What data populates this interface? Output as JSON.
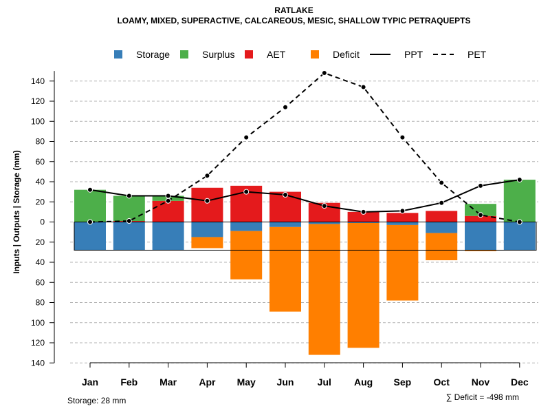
{
  "chart_data": {
    "type": "bar",
    "title": "RATLAKE",
    "subtitle": "LOAMY, MIXED, SUPERACTIVE, CALCAREOUS, MESIC, SHALLOW TYPIC PETRAQUEPTS",
    "ylabel": "Inputs | Outputs | Storage     (mm)",
    "xlabel": "",
    "ylim": [
      -140,
      150
    ],
    "yticks": [
      140,
      120,
      100,
      80,
      60,
      40,
      20,
      0,
      20,
      40,
      60,
      80,
      100,
      120,
      140
    ],
    "ytick_values": [
      140,
      120,
      100,
      80,
      60,
      40,
      20,
      0,
      -20,
      -40,
      -60,
      -80,
      -100,
      -120,
      -140
    ],
    "grid": true,
    "legend_position": "top",
    "categories": [
      "Jan",
      "Feb",
      "Mar",
      "Apr",
      "May",
      "Jun",
      "Jul",
      "Aug",
      "Sep",
      "Oct",
      "Nov",
      "Dec"
    ],
    "legend": [
      {
        "name": "Storage",
        "color": "#377eb8",
        "kind": "box"
      },
      {
        "name": "Surplus",
        "color": "#4daf4a",
        "kind": "box"
      },
      {
        "name": "AET",
        "color": "#e41a1c",
        "kind": "box"
      },
      {
        "name": "Deficit",
        "color": "#ff7f00",
        "kind": "box"
      },
      {
        "name": "PPT",
        "color": "#000000",
        "kind": "line"
      },
      {
        "name": "PET",
        "color": "#000000",
        "kind": "dashed"
      }
    ],
    "series": [
      {
        "name": "AET",
        "color": "#e41a1c",
        "values": [
          0,
          1,
          21,
          34,
          36,
          30,
          19,
          10,
          9,
          11,
          6,
          0
        ]
      },
      {
        "name": "Surplus",
        "color": "#4daf4a",
        "values": [
          32,
          25,
          5,
          0,
          0,
          0,
          0,
          0,
          0,
          0,
          12,
          42
        ]
      },
      {
        "name": "Storage",
        "color": "#377eb8",
        "values": [
          28,
          28,
          28,
          15,
          9,
          5,
          2,
          1,
          3,
          11,
          28,
          28
        ]
      },
      {
        "name": "Deficit",
        "color": "#ff7f00",
        "values": [
          0,
          0,
          0,
          11,
          48,
          84,
          130,
          124,
          75,
          27,
          1,
          0
        ]
      },
      {
        "name": "PPT",
        "color": "#000000",
        "values": [
          32,
          26,
          26,
          21,
          30,
          27,
          16,
          10,
          11,
          19,
          36,
          42
        ]
      },
      {
        "name": "PET",
        "color": "#000000",
        "values": [
          0,
          1,
          21,
          46,
          84,
          114,
          148,
          134,
          84,
          39,
          7,
          0
        ]
      }
    ],
    "storage_capacity": 28
  },
  "footer": {
    "storage_note": "Storage: 28 mm",
    "deficit_note": "∑ Deficit = -498 mm"
  }
}
